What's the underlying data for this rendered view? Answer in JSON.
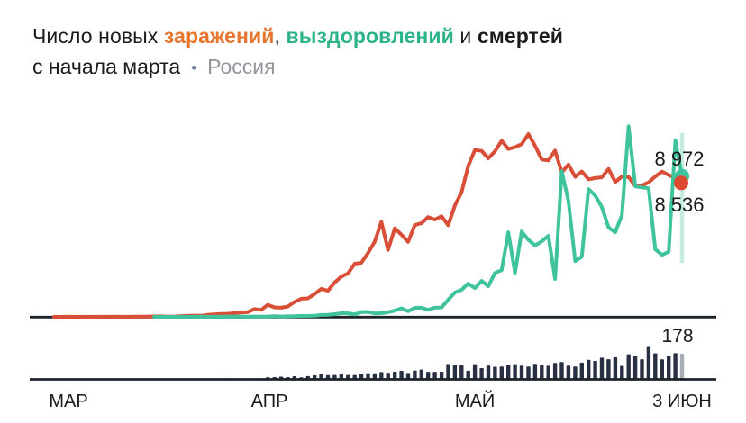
{
  "title": {
    "prefix": "Число новых ",
    "infections_word": "заражений",
    "comma": ", ",
    "recoveries_word": "выздоровлений",
    "conjunction": " и ",
    "deaths_word": "смертей"
  },
  "subtitle": {
    "period": "с начала марта",
    "separator": "•",
    "region": "Россия"
  },
  "palette": {
    "infections_line": "#d94e36",
    "infections_text": "#e8752e",
    "recoveries_line": "#3ec39c",
    "recoveries_text": "#2db389",
    "deaths_bar": "#2a3044",
    "deaths_last_bar": "#a9adb4",
    "axis": "#1e232b",
    "region_text": "#93969d",
    "label_text": "#1b1b1b"
  },
  "chart_data": {
    "type": "line+bar",
    "title": "Число новых заражений, выздоровлений и смертей с начала марта — Россия",
    "x_unit": "день",
    "x_range_days": 95,
    "x_tick_labels": [
      "МАР",
      "АПР",
      "МАЙ",
      "3 ИЮН"
    ],
    "grid": false,
    "line_ylim": [
      0,
      12400
    ],
    "bar_ylim": [
      0,
      240
    ],
    "end_labels": {
      "recoveries": "8 972",
      "infections": "8 536",
      "deaths": "178"
    },
    "series": [
      {
        "name": "заражений",
        "type": "line",
        "color": "#d94e36",
        "values": [
          0,
          0,
          3,
          0,
          3,
          0,
          8,
          6,
          3,
          10,
          8,
          6,
          9,
          14,
          14,
          30,
          33,
          16,
          21,
          53,
          61,
          80,
          71,
          132,
          163,
          182,
          196,
          228,
          270,
          302,
          500,
          440,
          771,
          601,
          582,
          658,
          954,
          1154,
          1175,
          1459,
          1786,
          1667,
          2186,
          2558,
          2774,
          3388,
          3448,
          4070,
          4785,
          6060,
          4268,
          5642,
          5236,
          4774,
          5849,
          5966,
          6361,
          6198,
          6411,
          5841,
          7099,
          7933,
          9623,
          10633,
          10581,
          10102,
          10559,
          11231,
          10699,
          10817,
          11012,
          11656,
          10899,
          10028,
          9974,
          10598,
          9200,
          9709,
          8926,
          9263,
          8764,
          8849,
          8894,
          9434,
          8599,
          8946,
          8915,
          8338,
          8371,
          8572,
          8952,
          9268,
          9035,
          8863,
          8536
        ]
      },
      {
        "name": "выздоровлений",
        "type": "line",
        "color": "#3ec39c",
        "values": [
          0,
          0,
          0,
          0,
          0,
          0,
          0,
          0,
          0,
          0,
          0,
          0,
          0,
          0,
          0,
          3,
          1,
          0,
          0,
          4,
          2,
          5,
          9,
          8,
          8,
          12,
          16,
          22,
          11,
          15,
          25,
          18,
          25,
          45,
          21,
          34,
          40,
          55,
          65,
          70,
          118,
          130,
          170,
          230,
          224,
          155,
          300,
          318,
          210,
          231,
          294,
          394,
          547,
          355,
          576,
          582,
          447,
          579,
          597,
          1090,
          1550,
          1720,
          2120,
          1830,
          2290,
          1950,
          2800,
          2980,
          5390,
          2800,
          5440,
          4900,
          4550,
          4810,
          5160,
          2410,
          9280,
          7390,
          3550,
          3840,
          8140,
          7730,
          7000,
          5700,
          5390,
          6500,
          12150,
          8310,
          8250,
          8200,
          4300,
          3950,
          4150,
          11250,
          8972
        ]
      },
      {
        "name": "смертей",
        "type": "bar",
        "color": "#2a3044",
        "last_bar_color": "#a9adb4",
        "values": [
          0,
          0,
          0,
          0,
          0,
          0,
          0,
          0,
          0,
          0,
          0,
          0,
          0,
          0,
          0,
          0,
          0,
          0,
          1,
          0,
          1,
          1,
          0,
          1,
          2,
          1,
          4,
          2,
          2,
          1,
          2,
          5,
          12,
          13,
          16,
          13,
          19,
          11,
          20,
          26,
          35,
          27,
          28,
          34,
          28,
          28,
          37,
          41,
          40,
          48,
          44,
          51,
          57,
          42,
          60,
          66,
          50,
          50,
          51,
          105,
          101,
          96,
          58,
          104,
          76,
          95,
          86,
          88,
          98,
          104,
          94,
          88,
          107,
          96,
          93,
          113,
          119,
          94,
          87,
          115,
          135,
          127,
          150,
          139,
          153,
          92,
          174,
          161,
          139,
          232,
          181,
          138,
          162,
          182,
          178
        ]
      }
    ]
  }
}
